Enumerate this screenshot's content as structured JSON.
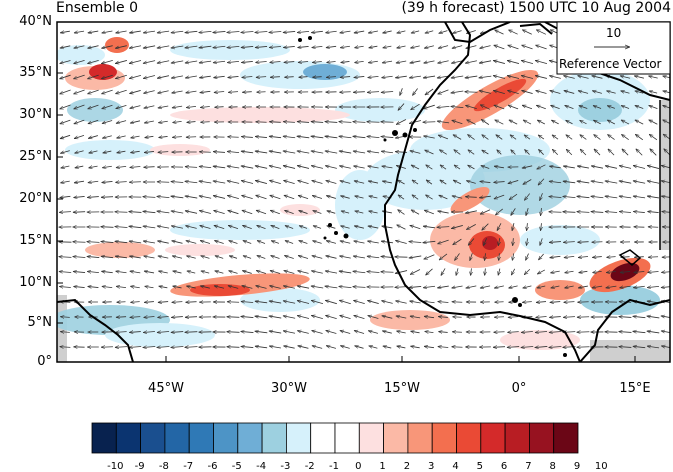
{
  "title_left": "Ensemble 0",
  "title_right": "(39 h forecast) 1500 UTC 10 Aug 2004",
  "lat_labels": [
    "40°N",
    "35°N",
    "30°N",
    "25°N",
    "20°N",
    "15°N",
    "10°N",
    "5°N",
    "0°"
  ],
  "lon_labels": [
    "45°W",
    "30°W",
    "15°W",
    "0°",
    "15°E"
  ],
  "reference_vector": {
    "value": "10",
    "label": "Reference Vector"
  },
  "colorbar": {
    "labels": [
      "-10",
      "-9",
      "-8",
      "-7",
      "-6",
      "-5",
      "-4",
      "-3",
      "-2",
      "-1",
      "0",
      "1",
      "2",
      "3",
      "4",
      "5",
      "6",
      "7",
      "8",
      "9",
      "10"
    ],
    "colors": [
      "#08224f",
      "#0b3470",
      "#1a4f8f",
      "#2366a6",
      "#2f79b6",
      "#4d94c6",
      "#6faed6",
      "#9dd0e0",
      "#d6f1fb",
      "#ffffff",
      "#ffffff",
      "#fde0e0",
      "#fbb9a6",
      "#f89679",
      "#f36f4f",
      "#ea4a35",
      "#d42a2a",
      "#b81d23",
      "#971220",
      "#6b0616"
    ]
  }
}
